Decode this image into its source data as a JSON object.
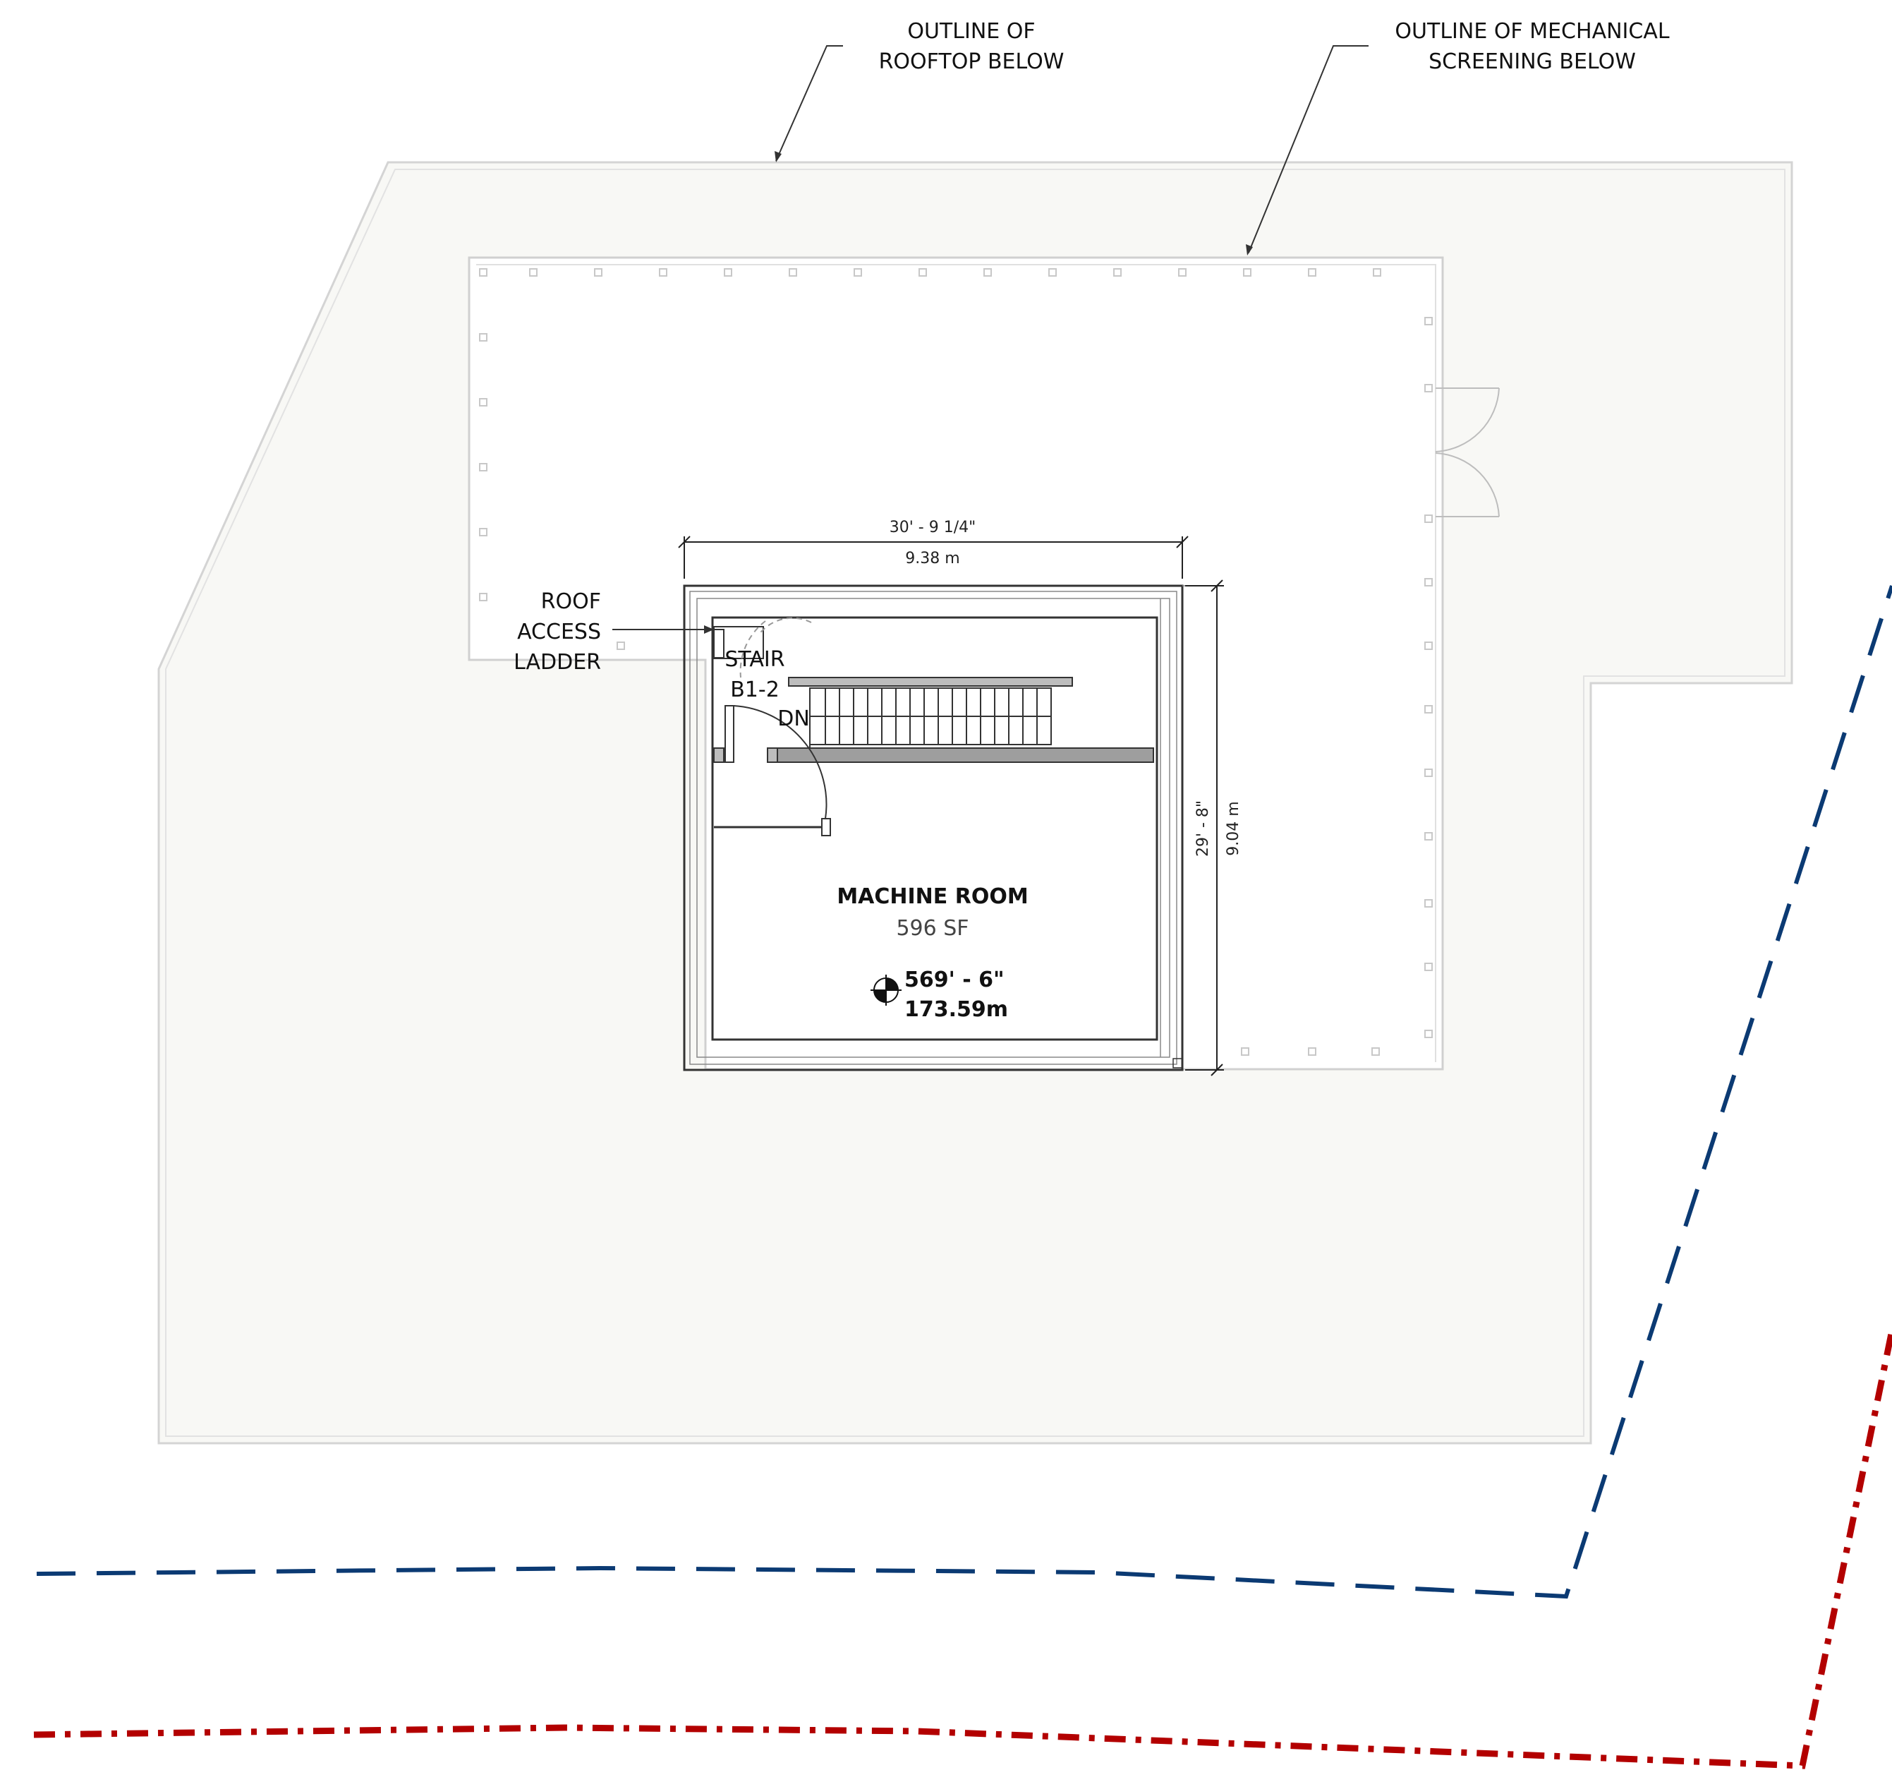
{
  "annotations": {
    "rooftop_outline": [
      "OUTLINE OF",
      "ROOFTOP BELOW"
    ],
    "mechanical_screening": [
      "OUTLINE OF MECHANICAL",
      "SCREENING BELOW"
    ],
    "roof_access_ladder": [
      "ROOF",
      "ACCESS",
      "LADDER"
    ],
    "stair": [
      "STAIR",
      "B1-2"
    ],
    "stair_direction": "DN"
  },
  "room": {
    "name": "MACHINE ROOM",
    "area": "596 SF"
  },
  "elevation": {
    "imperial": "569' - 6\"",
    "metric": "173.59m"
  },
  "dimensions": {
    "width_imperial": "30' - 9 1/4\"",
    "width_metric": "9.38 m",
    "depth_imperial": "29' - 8\"",
    "depth_metric": "9.04 m"
  },
  "colors": {
    "roof_fill": "#f8f8f5",
    "outline_gray": "#cfcfcf",
    "wall": "#333333",
    "blue_line": "#0b3a73",
    "red_line": "#b30000"
  }
}
